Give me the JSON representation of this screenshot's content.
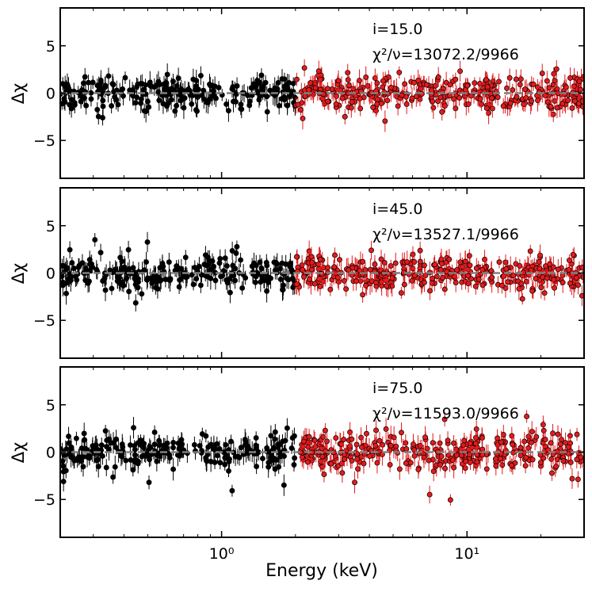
{
  "chart_data": [
    {
      "type": "scatter",
      "annotation_i": "i=15.0",
      "annotation_chi": "χ²/ν=13072.2/9966",
      "ylabel": "Δχ",
      "xlabel": "",
      "xscale": "log",
      "xlim": [
        0.22,
        30
      ],
      "ylim": [
        -9,
        9
      ],
      "yticks": [
        -5,
        0,
        5
      ],
      "ytick_labels": [
        "−5",
        "0",
        "5"
      ],
      "reference_line": 0,
      "series": [
        {
          "color": "#000000",
          "x_range": [
            0.22,
            2.0
          ],
          "count": 230,
          "spread": 0.85
        },
        {
          "color": "#e41a1c",
          "x_range": [
            2.0,
            30
          ],
          "count": 340,
          "spread": 0.95
        }
      ]
    },
    {
      "type": "scatter",
      "annotation_i": "i=45.0",
      "annotation_chi": "χ²/ν=13527.1/9966",
      "ylabel": "Δχ",
      "xlabel": "",
      "xscale": "log",
      "xlim": [
        0.22,
        30
      ],
      "ylim": [
        -9,
        9
      ],
      "yticks": [
        -5,
        0,
        5
      ],
      "ytick_labels": [
        "−5",
        "0",
        "5"
      ],
      "reference_line": 0,
      "series": [
        {
          "color": "#000000",
          "x_range": [
            0.22,
            2.0
          ],
          "count": 230,
          "spread": 0.95
        },
        {
          "color": "#e41a1c",
          "x_range": [
            2.0,
            30
          ],
          "count": 340,
          "spread": 1.0
        }
      ]
    },
    {
      "type": "scatter",
      "annotation_i": "i=75.0",
      "annotation_chi": "χ²/ν=11593.0/9966",
      "ylabel": "Δχ",
      "xlabel": "Energy (keV)",
      "xscale": "log",
      "xlim": [
        0.22,
        30
      ],
      "ylim": [
        -9,
        9
      ],
      "yticks": [
        -5,
        0,
        5
      ],
      "ytick_labels": [
        "−5",
        "0",
        "5"
      ],
      "xticks": [
        1,
        10
      ],
      "xtick_labels": [
        "10⁰",
        "10¹"
      ],
      "reference_line": 0,
      "series": [
        {
          "color": "#000000",
          "x_range": [
            0.22,
            2.0
          ],
          "count": 230,
          "spread": 0.9
        },
        {
          "color": "#e41a1c",
          "x_range": [
            2.0,
            30
          ],
          "count": 340,
          "spread": 1.05
        }
      ]
    }
  ]
}
